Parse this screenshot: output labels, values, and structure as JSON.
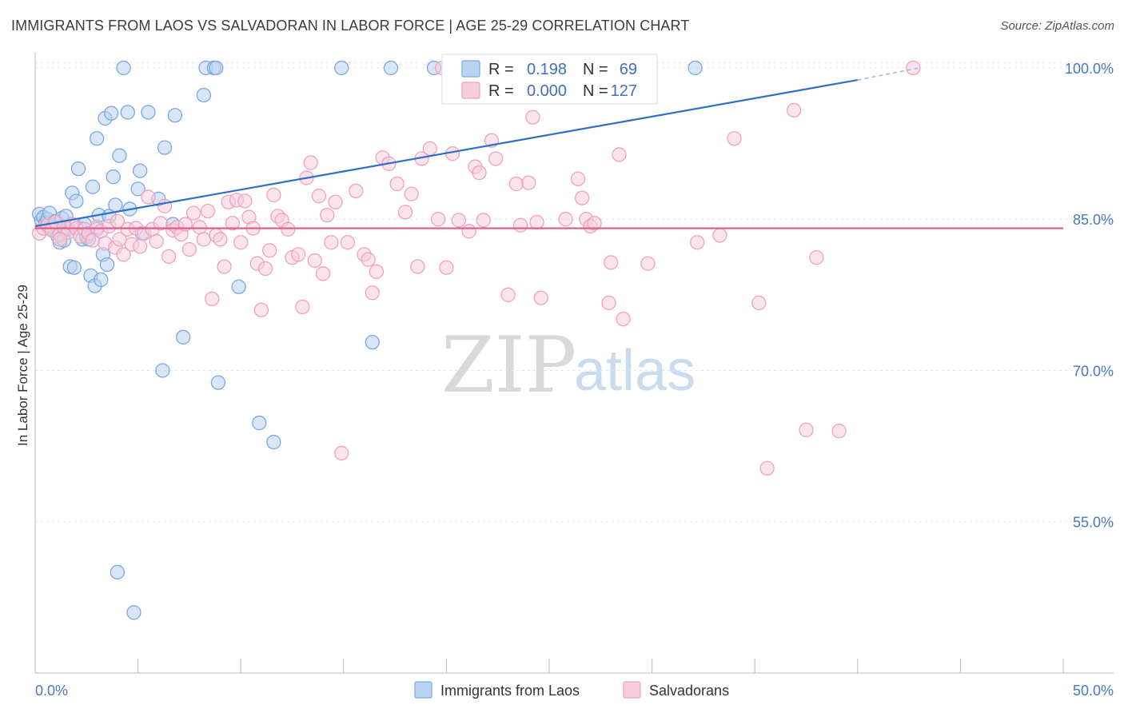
{
  "chart_data": {
    "type": "scatter",
    "title": "IMMIGRANTS FROM LAOS VS SALVADORAN IN LABOR FORCE | AGE 25-29 CORRELATION CHART",
    "source": "Source: ZipAtlas.com",
    "ylabel": "In Labor Force | Age 25-29",
    "xlim": [
      0,
      50
    ],
    "ylim": [
      40,
      101.5
    ],
    "x_tick_labels": [
      "0.0%",
      "50.0%"
    ],
    "y_ticks": [
      {
        "value": 100,
        "label": "100.0%"
      },
      {
        "value": 85,
        "label": "85.0%"
      },
      {
        "value": 70,
        "label": "70.0%"
      },
      {
        "value": 55,
        "label": "55.0%"
      }
    ],
    "grid": "horizontal-dashed",
    "watermark": {
      "zip": "ZIP",
      "atlas": "atlas"
    },
    "legend_top": {
      "rows": [
        {
          "r_label": "R =",
          "r_value": "0.198",
          "n_label": "N =",
          "n_value": "69"
        },
        {
          "r_label": "R =",
          "r_value": "0.000",
          "n_label": "N =",
          "n_value": "127"
        }
      ]
    },
    "series": [
      {
        "name": "Immigrants from Laos",
        "color": "#7aa8e0",
        "fill": "#b9d2f1",
        "trend": {
          "x0": 0,
          "y0": 84.3,
          "x1": 40,
          "y1": 98.8,
          "dash_to_x": 43,
          "dash_to_y": 100.0,
          "color": "#2f6fca"
        },
        "points": [
          [
            0.2,
            85.5
          ],
          [
            0.3,
            84.9
          ],
          [
            0.4,
            85.2
          ],
          [
            0.5,
            84.6
          ],
          [
            0.6,
            85.0
          ],
          [
            0.7,
            85.6
          ],
          [
            0.8,
            84.2
          ],
          [
            0.9,
            83.9
          ],
          [
            1.0,
            84.8
          ],
          [
            1.1,
            83.3
          ],
          [
            1.2,
            82.7
          ],
          [
            1.3,
            85.1
          ],
          [
            1.4,
            82.9
          ],
          [
            1.5,
            85.3
          ],
          [
            1.6,
            84.0
          ],
          [
            1.7,
            80.3
          ],
          [
            1.8,
            87.6
          ],
          [
            1.9,
            80.2
          ],
          [
            2.0,
            86.8
          ],
          [
            2.1,
            90.0
          ],
          [
            2.2,
            84.1
          ],
          [
            2.3,
            83.0
          ],
          [
            2.4,
            84.5
          ],
          [
            2.5,
            83.2
          ],
          [
            2.6,
            83.0
          ],
          [
            2.7,
            79.4
          ],
          [
            2.8,
            88.2
          ],
          [
            2.9,
            78.4
          ],
          [
            3.0,
            84.0
          ],
          [
            3.0,
            93.0
          ],
          [
            3.1,
            85.4
          ],
          [
            3.2,
            79.0
          ],
          [
            3.3,
            81.5
          ],
          [
            3.4,
            95.0
          ],
          [
            3.5,
            80.5
          ],
          [
            3.6,
            85.3
          ],
          [
            3.7,
            95.5
          ],
          [
            3.8,
            89.2
          ],
          [
            3.9,
            86.4
          ],
          [
            4.0,
            50.0
          ],
          [
            4.1,
            91.3
          ],
          [
            4.3,
            100.0
          ],
          [
            4.5,
            95.6
          ],
          [
            4.6,
            86.0
          ],
          [
            4.8,
            46.0
          ],
          [
            5.0,
            88.0
          ],
          [
            5.1,
            89.8
          ],
          [
            5.2,
            83.6
          ],
          [
            5.5,
            95.6
          ],
          [
            6.0,
            87.0
          ],
          [
            6.2,
            70.0
          ],
          [
            6.3,
            92.1
          ],
          [
            6.7,
            84.5
          ],
          [
            6.8,
            95.3
          ],
          [
            7.2,
            73.3
          ],
          [
            8.2,
            97.3
          ],
          [
            8.3,
            100.0
          ],
          [
            8.7,
            100.0
          ],
          [
            8.8,
            100.0
          ],
          [
            8.9,
            68.8
          ],
          [
            9.9,
            78.3
          ],
          [
            10.9,
            64.8
          ],
          [
            11.6,
            62.9
          ],
          [
            14.9,
            100.0
          ],
          [
            16.4,
            72.8
          ],
          [
            17.3,
            100.0
          ],
          [
            19.4,
            100.0
          ],
          [
            32.1,
            100.0
          ],
          [
            1.5,
            84.1
          ]
        ]
      },
      {
        "name": "Salvadorans",
        "color": "#eea2bf",
        "fill": "#f7cddd",
        "trend": {
          "x0": 0,
          "y0": 84.1,
          "x1": 50,
          "y1": 84.1,
          "color": "#e0578a"
        },
        "points": [
          [
            0.2,
            83.6
          ],
          [
            0.4,
            84.1
          ],
          [
            0.6,
            84.4
          ],
          [
            0.8,
            83.9
          ],
          [
            1.0,
            84.7
          ],
          [
            1.2,
            83.5
          ],
          [
            1.4,
            84.2
          ],
          [
            1.6,
            83.7
          ],
          [
            1.8,
            84.5
          ],
          [
            2.0,
            84.1
          ],
          [
            2.2,
            83.3
          ],
          [
            2.4,
            84.0
          ],
          [
            2.6,
            83.6
          ],
          [
            2.8,
            82.9
          ],
          [
            3.0,
            84.2
          ],
          [
            3.2,
            83.8
          ],
          [
            3.4,
            82.6
          ],
          [
            3.6,
            84.3
          ],
          [
            3.9,
            82.2
          ],
          [
            4.1,
            83.0
          ],
          [
            4.3,
            81.5
          ],
          [
            4.5,
            84.0
          ],
          [
            4.7,
            82.5
          ],
          [
            4.9,
            84.1
          ],
          [
            5.1,
            82.3
          ],
          [
            5.3,
            83.6
          ],
          [
            5.5,
            87.2
          ],
          [
            5.7,
            84.0
          ],
          [
            5.9,
            82.8
          ],
          [
            6.1,
            84.6
          ],
          [
            6.3,
            86.3
          ],
          [
            6.5,
            81.3
          ],
          [
            6.7,
            83.9
          ],
          [
            6.9,
            84.2
          ],
          [
            7.1,
            83.5
          ],
          [
            7.3,
            84.5
          ],
          [
            7.5,
            82.0
          ],
          [
            7.7,
            85.6
          ],
          [
            8.0,
            84.2
          ],
          [
            8.2,
            83.0
          ],
          [
            8.4,
            85.8
          ],
          [
            8.6,
            77.1
          ],
          [
            8.8,
            83.4
          ],
          [
            9.0,
            83.0
          ],
          [
            9.2,
            80.3
          ],
          [
            9.4,
            86.7
          ],
          [
            9.6,
            84.6
          ],
          [
            9.8,
            86.9
          ],
          [
            10.0,
            82.7
          ],
          [
            10.2,
            86.8
          ],
          [
            10.4,
            85.2
          ],
          [
            10.6,
            84.1
          ],
          [
            10.8,
            80.6
          ],
          [
            11.0,
            76.0
          ],
          [
            11.2,
            80.1
          ],
          [
            11.4,
            81.9
          ],
          [
            11.6,
            87.4
          ],
          [
            11.8,
            85.3
          ],
          [
            12.0,
            84.9
          ],
          [
            12.3,
            84.0
          ],
          [
            12.5,
            81.2
          ],
          [
            12.8,
            81.5
          ],
          [
            13.0,
            76.3
          ],
          [
            13.2,
            89.1
          ],
          [
            13.4,
            90.6
          ],
          [
            13.6,
            80.9
          ],
          [
            13.8,
            87.3
          ],
          [
            14.0,
            79.6
          ],
          [
            14.2,
            85.4
          ],
          [
            14.4,
            82.7
          ],
          [
            14.6,
            86.7
          ],
          [
            14.9,
            61.8
          ],
          [
            15.2,
            82.7
          ],
          [
            15.6,
            87.8
          ],
          [
            16.0,
            81.5
          ],
          [
            16.2,
            81.0
          ],
          [
            16.4,
            77.7
          ],
          [
            16.6,
            79.8
          ],
          [
            16.9,
            91.1
          ],
          [
            17.2,
            90.5
          ],
          [
            17.6,
            88.5
          ],
          [
            18.0,
            85.7
          ],
          [
            18.3,
            87.5
          ],
          [
            18.6,
            80.3
          ],
          [
            18.8,
            91.0
          ],
          [
            19.2,
            92.0
          ],
          [
            19.6,
            85.0
          ],
          [
            19.8,
            100.0
          ],
          [
            20.0,
            80.2
          ],
          [
            20.3,
            91.5
          ],
          [
            20.6,
            84.9
          ],
          [
            21.1,
            83.8
          ],
          [
            21.4,
            90.2
          ],
          [
            21.6,
            89.6
          ],
          [
            21.8,
            84.9
          ],
          [
            22.2,
            92.8
          ],
          [
            22.4,
            91.0
          ],
          [
            23.0,
            77.5
          ],
          [
            23.4,
            88.5
          ],
          [
            23.6,
            84.4
          ],
          [
            24.0,
            88.6
          ],
          [
            24.2,
            95.1
          ],
          [
            24.4,
            84.7
          ],
          [
            24.6,
            77.2
          ],
          [
            25.8,
            85.0
          ],
          [
            26.4,
            89.0
          ],
          [
            26.6,
            87.1
          ],
          [
            26.8,
            85.0
          ],
          [
            27.0,
            84.3
          ],
          [
            27.2,
            84.6
          ],
          [
            27.9,
            76.7
          ],
          [
            28.0,
            80.7
          ],
          [
            28.6,
            75.1
          ],
          [
            28.4,
            91.4
          ],
          [
            29.8,
            80.6
          ],
          [
            32.2,
            82.7
          ],
          [
            33.3,
            83.4
          ],
          [
            34.0,
            93.0
          ],
          [
            35.2,
            76.7
          ],
          [
            35.6,
            60.3
          ],
          [
            36.9,
            95.8
          ],
          [
            37.5,
            64.1
          ],
          [
            38.0,
            81.2
          ],
          [
            39.1,
            64.0
          ],
          [
            42.7,
            100.0
          ],
          [
            4.0,
            84.8
          ],
          [
            1.2,
            83.0
          ]
        ]
      }
    ]
  }
}
